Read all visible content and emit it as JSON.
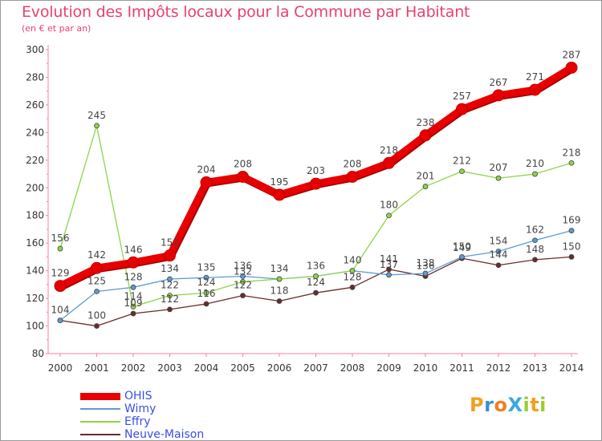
{
  "title": "Evolution des Impôts locaux pour la Commune par Habitant",
  "subtitle": "(en € et par an)",
  "logo": {
    "text": "ProXiti",
    "letters": [
      {
        "ch": "P",
        "color": "#f0a020"
      },
      {
        "ch": "r",
        "color": "#3a8fd8"
      },
      {
        "ch": "o",
        "color": "#f08020"
      },
      {
        "ch": "X",
        "color": "#3aa8e0"
      },
      {
        "ch": "i",
        "color": "#9acd32"
      },
      {
        "ch": "t",
        "color": "#f0a020"
      },
      {
        "ch": "i",
        "color": "#9acd32"
      }
    ]
  },
  "chart_data": {
    "type": "line",
    "title": "Evolution des Impôts locaux pour la Commune par Habitant",
    "subtitle": "(en € et par an)",
    "xlabel": "",
    "ylabel": "",
    "x": [
      "2000",
      "2001",
      "2002",
      "2003",
      "2004",
      "2005",
      "2006",
      "2007",
      "2008",
      "2009",
      "2010",
      "2011",
      "2012",
      "2013",
      "2014"
    ],
    "ylim": [
      80,
      300
    ],
    "yticks": [
      80,
      100,
      120,
      140,
      160,
      180,
      200,
      220,
      240,
      260,
      280,
      300
    ],
    "grid": false,
    "legend_position": "bottom-left",
    "series": [
      {
        "name": "OHIS",
        "color": "#e80000",
        "values": [
          129,
          142,
          146,
          151,
          204,
          208,
          195,
          203,
          208,
          218,
          238,
          257,
          267,
          271,
          287
        ],
        "labels": [
          "129",
          "142",
          "146",
          "151",
          "204",
          "208",
          "195",
          "203",
          "208",
          "218",
          "238",
          "257",
          "267",
          "271",
          "287"
        ]
      },
      {
        "name": "Wimy",
        "color": "#5b9bd5",
        "values": [
          104,
          125,
          128,
          134,
          135,
          136,
          134,
          136,
          140,
          137,
          138,
          150,
          154,
          162,
          169
        ],
        "labels": [
          "",
          "125",
          "128",
          "134",
          "135",
          "136",
          "",
          "",
          "",
          "137",
          "138",
          "150",
          "154",
          "162",
          "169"
        ]
      },
      {
        "name": "Effry",
        "color": "#8fd34a",
        "values": [
          156,
          245,
          114,
          122,
          124,
          132,
          134,
          136,
          140,
          180,
          201,
          212,
          207,
          210,
          218
        ],
        "labels": [
          "156",
          "245",
          "114",
          "122",
          "124",
          "132",
          "134",
          "136",
          "140",
          "180",
          "201",
          "212",
          "207",
          "210",
          "218"
        ]
      },
      {
        "name": "Neuve-Maison",
        "color": "#6b2a2a",
        "values": [
          104,
          100,
          109,
          112,
          116,
          122,
          118,
          124,
          128,
          141,
          136,
          149,
          144,
          148,
          150
        ],
        "labels": [
          "104",
          "100",
          "109",
          "112",
          "116",
          "122",
          "118",
          "124",
          "128",
          "141",
          "136",
          "149",
          "144",
          "148",
          "150"
        ]
      }
    ]
  }
}
